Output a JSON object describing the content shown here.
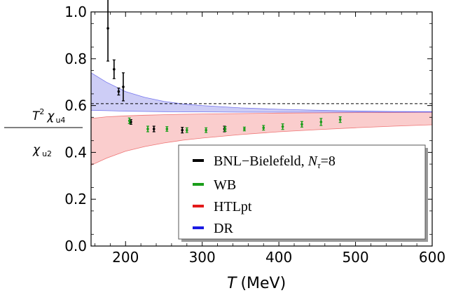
{
  "chart_data": {
    "type": "scatter",
    "title": "",
    "xlabel": "T (MeV)",
    "xlabel_var": "T",
    "xlabel_unit": "(MeV)",
    "ylabel": "T² χu4 / χu2",
    "ylabel_parts": {
      "num_T": "T",
      "num_sup": "2",
      "num_chi": "χ",
      "num_sub": "u4",
      "den_chi": "χ",
      "den_sub": "u2"
    },
    "xlim": [
      155,
      600
    ],
    "ylim": [
      0.0,
      1.0
    ],
    "x_ticks": [
      200,
      300,
      400,
      500,
      600
    ],
    "y_ticks": [
      0.0,
      0.2,
      0.4,
      0.6,
      0.8,
      1.0
    ],
    "tick_labels_y": [
      "0.0",
      "0.2",
      "0.4",
      "0.6",
      "0.8",
      "1.0"
    ],
    "tick_labels_x": [
      "200",
      "300",
      "400",
      "500",
      "600"
    ],
    "reference_line": {
      "y": 0.608,
      "style": "dashed"
    },
    "legend_position": "bottom-right",
    "colors": {
      "bnl": "#000000",
      "wb": "#1a9e1a",
      "htlpt": "#e31a1a",
      "dr": "#1a1ae3",
      "htlpt_fill": "#f9c4c4",
      "dr_fill": "#c4c4f5"
    },
    "series": [
      {
        "key": "bnl",
        "name": "BNL−Bielefeld, ",
        "name_sub_var": "N",
        "name_sub": "τ",
        "name_tail": "=8",
        "kind": "errorbar",
        "points": [
          {
            "x": 177,
            "y": 0.93,
            "err": 0.14
          },
          {
            "x": 185,
            "y": 0.755,
            "err": 0.04
          },
          {
            "x": 191,
            "y": 0.66,
            "err": 0.015
          },
          {
            "x": 197,
            "y": 0.68,
            "err": 0.06
          },
          {
            "x": 207,
            "y": 0.53,
            "err": 0.01
          },
          {
            "x": 237,
            "y": 0.5,
            "err": 0.012
          },
          {
            "x": 274,
            "y": 0.495,
            "err": 0.012
          },
          {
            "x": 329,
            "y": 0.5,
            "err": 0.012
          }
        ]
      },
      {
        "key": "wb",
        "name": "WB",
        "kind": "errorbar",
        "points": [
          {
            "x": 205,
            "y": 0.535,
            "err": 0.012
          },
          {
            "x": 229,
            "y": 0.5,
            "err": 0.012
          },
          {
            "x": 254,
            "y": 0.5,
            "err": 0.01
          },
          {
            "x": 280,
            "y": 0.495,
            "err": 0.01
          },
          {
            "x": 305,
            "y": 0.495,
            "err": 0.01
          },
          {
            "x": 330,
            "y": 0.5,
            "err": 0.01
          },
          {
            "x": 355,
            "y": 0.5,
            "err": 0.008
          },
          {
            "x": 380,
            "y": 0.505,
            "err": 0.01
          },
          {
            "x": 405,
            "y": 0.51,
            "err": 0.012
          },
          {
            "x": 430,
            "y": 0.52,
            "err": 0.012
          },
          {
            "x": 455,
            "y": 0.53,
            "err": 0.015
          },
          {
            "x": 480,
            "y": 0.54,
            "err": 0.012
          }
        ]
      },
      {
        "key": "htlpt",
        "name": "HTLpt",
        "kind": "band",
        "x": [
          155,
          175,
          200,
          225,
          250,
          275,
          300,
          350,
          400,
          450,
          500,
          550,
          600
        ],
        "upper": [
          0.545,
          0.552,
          0.556,
          0.559,
          0.561,
          0.563,
          0.564,
          0.566,
          0.568,
          0.569,
          0.57,
          0.571,
          0.572
        ],
        "lower": [
          0.345,
          0.375,
          0.405,
          0.425,
          0.44,
          0.452,
          0.461,
          0.476,
          0.488,
          0.497,
          0.505,
          0.512,
          0.518
        ]
      },
      {
        "key": "dr",
        "name": "DR",
        "kind": "band",
        "x": [
          155,
          175,
          200,
          225,
          250,
          275,
          300,
          350,
          400,
          450,
          500,
          550,
          600
        ],
        "upper": [
          0.74,
          0.7,
          0.66,
          0.635,
          0.618,
          0.607,
          0.6,
          0.59,
          0.584,
          0.58,
          0.577,
          0.575,
          0.574
        ],
        "lower": [
          0.58,
          0.578,
          0.576,
          0.575,
          0.574,
          0.573,
          0.573,
          0.572,
          0.572,
          0.572,
          0.572,
          0.572,
          0.572
        ]
      }
    ]
  }
}
